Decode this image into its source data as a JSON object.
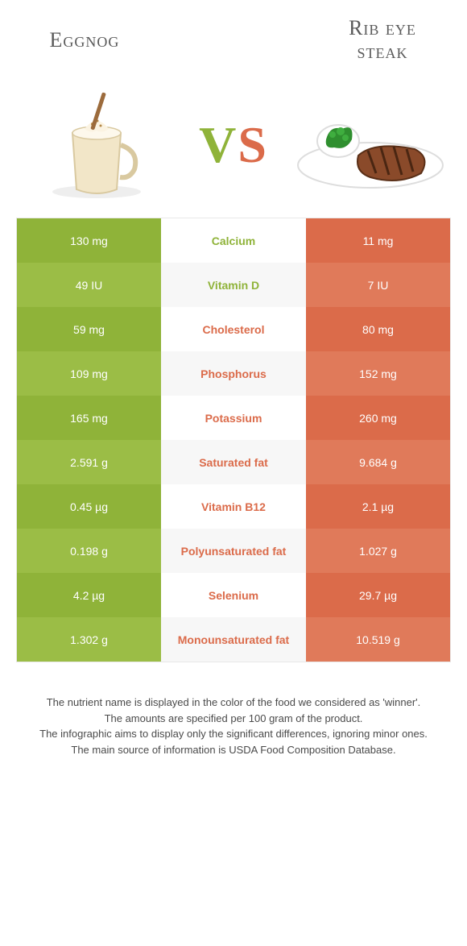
{
  "colors": {
    "left_base": "#8fb339",
    "left_alt": "#9bbd46",
    "right_base": "#db6b4a",
    "right_alt": "#e07a5a",
    "mid_text_left": "#8fb339",
    "mid_text_right": "#db6b4a"
  },
  "header": {
    "left": "Eggnog",
    "right": "Rib eye\nsteak",
    "vs_v": "V",
    "vs_s": "S"
  },
  "rows": [
    {
      "nutrient": "Calcium",
      "left": "130 mg",
      "right": "11 mg",
      "winner": "left"
    },
    {
      "nutrient": "Vitamin D",
      "left": "49 IU",
      "right": "7 IU",
      "winner": "left"
    },
    {
      "nutrient": "Cholesterol",
      "left": "59 mg",
      "right": "80 mg",
      "winner": "right"
    },
    {
      "nutrient": "Phosphorus",
      "left": "109 mg",
      "right": "152 mg",
      "winner": "right"
    },
    {
      "nutrient": "Potassium",
      "left": "165 mg",
      "right": "260 mg",
      "winner": "right"
    },
    {
      "nutrient": "Saturated fat",
      "left": "2.591 g",
      "right": "9.684 g",
      "winner": "right"
    },
    {
      "nutrient": "Vitamin B12",
      "left": "0.45 µg",
      "right": "2.1 µg",
      "winner": "right"
    },
    {
      "nutrient": "Polyunsaturated fat",
      "left": "0.198 g",
      "right": "1.027 g",
      "winner": "right"
    },
    {
      "nutrient": "Selenium",
      "left": "4.2 µg",
      "right": "29.7 µg",
      "winner": "right"
    },
    {
      "nutrient": "Monounsaturated fat",
      "left": "1.302 g",
      "right": "10.519 g",
      "winner": "right"
    }
  ],
  "footer": {
    "l1": "The nutrient name is displayed in the color of the food we considered as 'winner'.",
    "l2": "The amounts are specified per 100 gram of the product.",
    "l3": "The infographic aims to display only the significant differences, ignoring minor ones.",
    "l4": "The main source of information is USDA Food Composition Database."
  }
}
